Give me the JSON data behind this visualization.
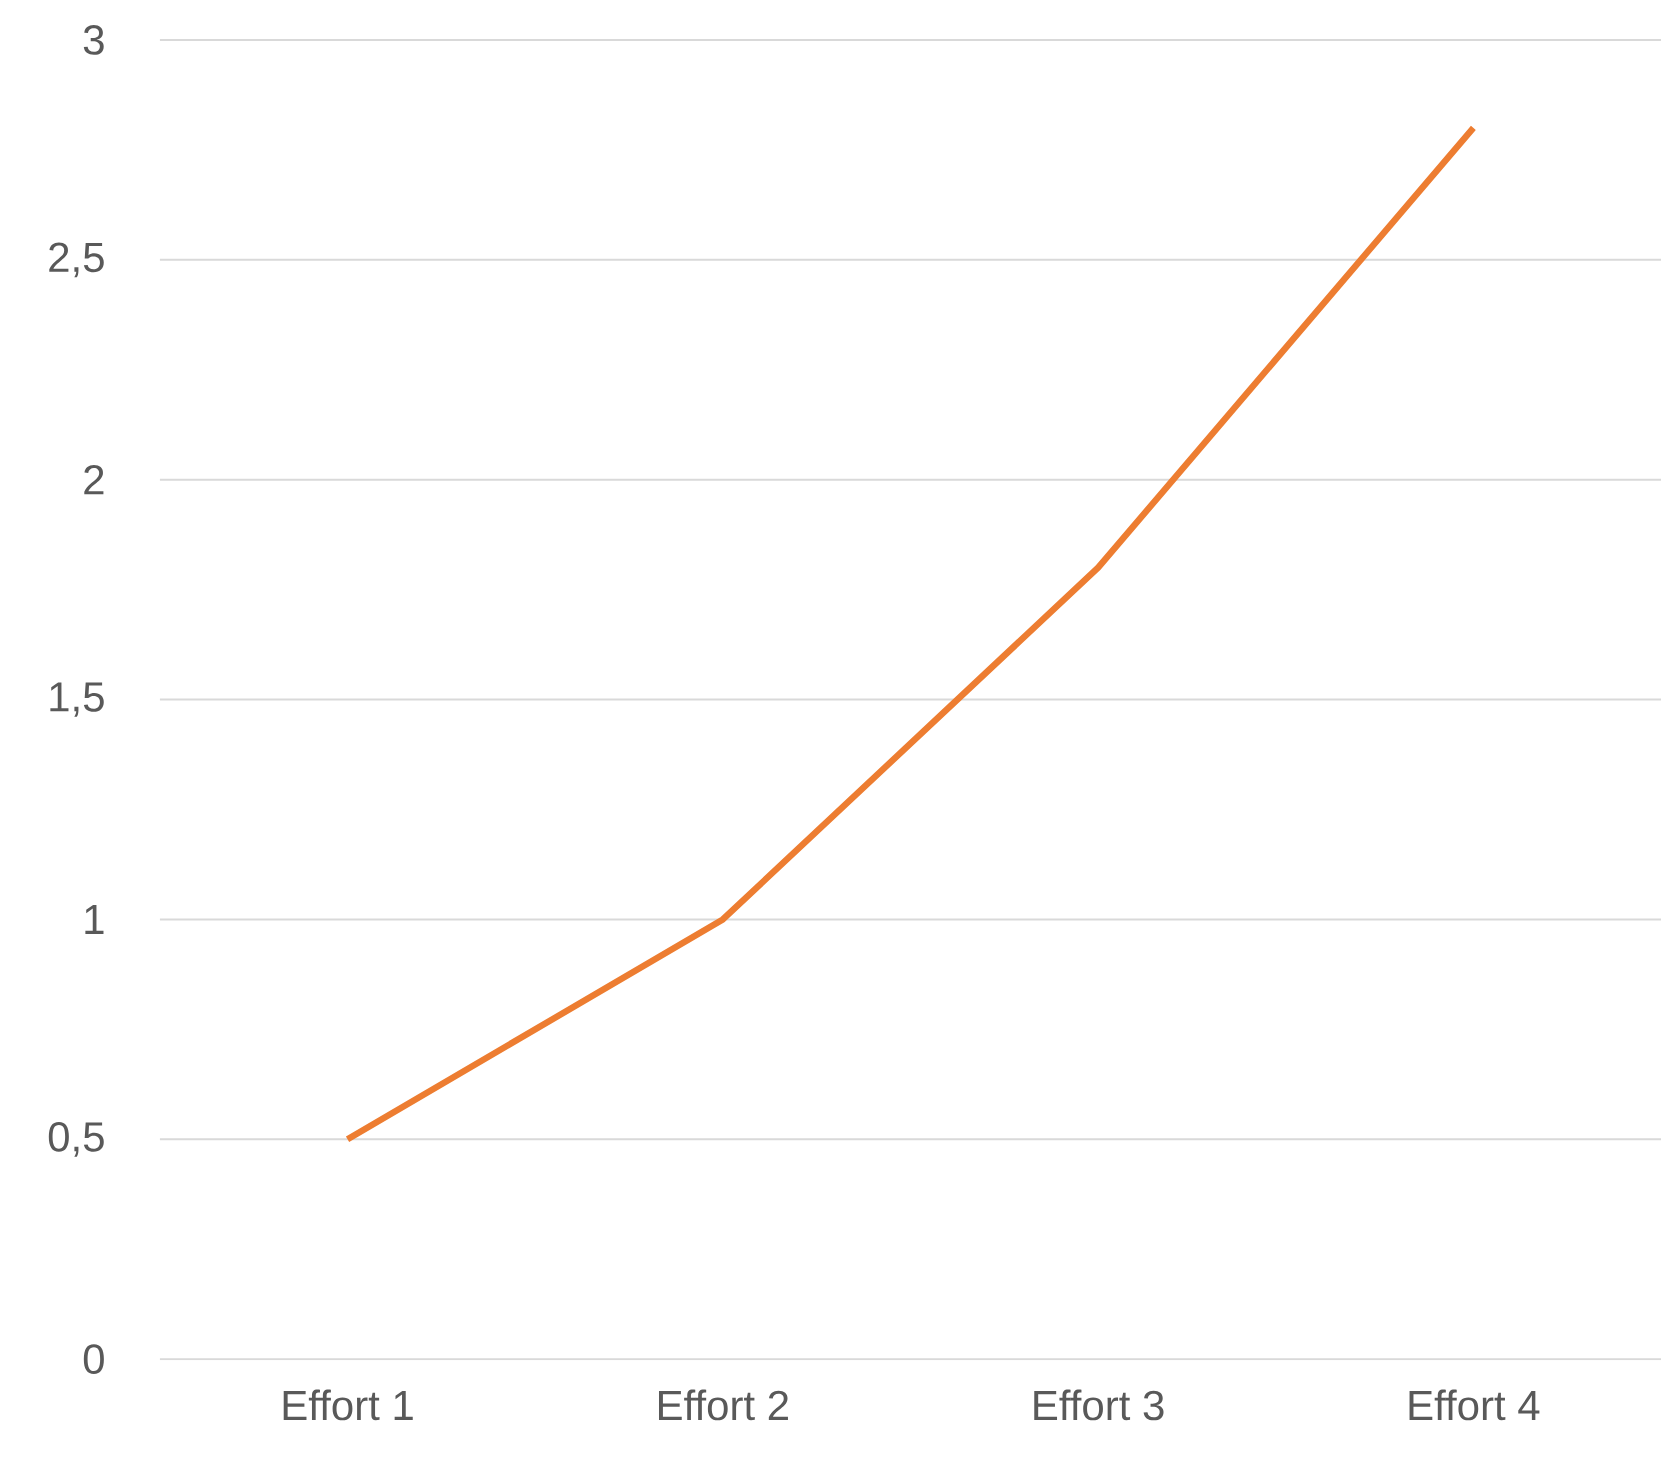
{
  "chart_data": {
    "type": "line",
    "categories": [
      "Effort 1",
      "Effort 2",
      "Effort 3",
      "Effort 4"
    ],
    "series": [
      {
        "color": "#ed7d31",
        "values": [
          0.5,
          1,
          1.8,
          2.8
        ]
      }
    ],
    "ylim": [
      0,
      3
    ],
    "yticks": [
      0,
      {
        "value": 0.5,
        "label": "0,5"
      },
      1,
      {
        "value": 1.5,
        "label": "1,5"
      },
      2,
      {
        "value": 2.5,
        "label": "2,5"
      },
      3
    ],
    "grid": "y",
    "marker": "none",
    "line_style": "solid"
  }
}
